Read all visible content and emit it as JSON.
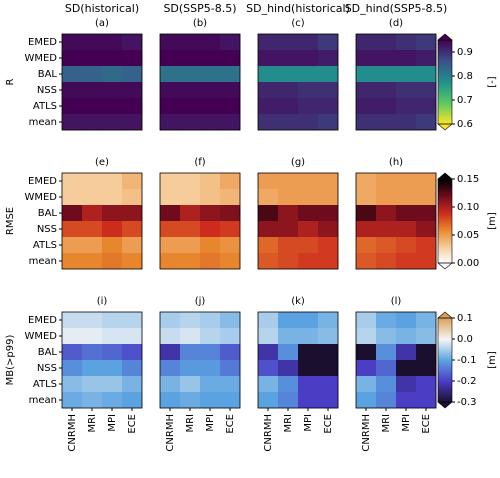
{
  "chart_data": {
    "type": "heatmap",
    "columns": [
      "SD(historical)",
      "SD(SSP5-8.5)",
      "SD_hind(historical)",
      "SD_hind(SSP5-8.5)"
    ],
    "y_categories": [
      "EMED",
      "WMED",
      "BAL",
      "NSS",
      "ATLS",
      "mean"
    ],
    "x_categories": [
      "CNRMH",
      "MRI",
      "MPI",
      "ECE"
    ],
    "rows": [
      {
        "name": "R",
        "colorbar": {
          "label": "[-]",
          "lim": [
            0.6,
            0.95
          ],
          "ticks": [
            0.6,
            0.7,
            0.8,
            0.9
          ],
          "colors": [
            "#fde725",
            "#5ec962",
            "#21918c",
            "#3b528b",
            "#440154"
          ]
        },
        "panels": [
          {
            "label": "(a)",
            "values": [
              [
                0.94,
                0.94,
                0.94,
                0.93
              ],
              [
                0.95,
                0.95,
                0.95,
                0.95
              ],
              [
                0.84,
                0.84,
                0.83,
                0.84
              ],
              [
                0.94,
                0.94,
                0.94,
                0.94
              ],
              [
                0.95,
                0.95,
                0.95,
                0.95
              ],
              [
                0.93,
                0.93,
                0.93,
                0.93
              ]
            ]
          },
          {
            "label": "(b)",
            "values": [
              [
                0.94,
                0.94,
                0.94,
                0.93
              ],
              [
                0.95,
                0.95,
                0.95,
                0.95
              ],
              [
                0.82,
                0.82,
                0.82,
                0.82
              ],
              [
                0.94,
                0.94,
                0.94,
                0.94
              ],
              [
                0.95,
                0.95,
                0.95,
                0.95
              ],
              [
                0.93,
                0.93,
                0.93,
                0.93
              ]
            ]
          },
          {
            "label": "(c)",
            "values": [
              [
                0.91,
                0.91,
                0.91,
                0.89
              ],
              [
                0.93,
                0.93,
                0.93,
                0.92
              ],
              [
                0.78,
                0.78,
                0.78,
                0.78
              ],
              [
                0.91,
                0.91,
                0.9,
                0.9
              ],
              [
                0.92,
                0.92,
                0.91,
                0.91
              ],
              [
                0.9,
                0.9,
                0.9,
                0.89
              ]
            ]
          },
          {
            "label": "(d)",
            "values": [
              [
                0.91,
                0.91,
                0.9,
                0.89
              ],
              [
                0.93,
                0.93,
                0.93,
                0.92
              ],
              [
                0.78,
                0.78,
                0.78,
                0.78
              ],
              [
                0.91,
                0.91,
                0.9,
                0.9
              ],
              [
                0.92,
                0.92,
                0.91,
                0.91
              ],
              [
                0.9,
                0.9,
                0.9,
                0.89
              ]
            ]
          }
        ]
      },
      {
        "name": "RMSE",
        "colorbar": {
          "label": "[m]",
          "lim": [
            0,
            0.15
          ],
          "ticks": [
            {
              "value": 0,
              "label": "0.00"
            },
            0.05,
            {
              "value": 0.1,
              "label": "0.10"
            },
            0.15
          ],
          "colors": [
            "#ffffff",
            "#f5cc9a",
            "#e8862e",
            "#cc2b1e",
            "#6e0c1e",
            "#000000"
          ]
        },
        "panels": [
          {
            "label": "(e)",
            "values": [
              [
                0.03,
                0.03,
                0.03,
                0.04
              ],
              [
                0.03,
                0.03,
                0.03,
                0.035
              ],
              [
                0.12,
                0.1,
                0.11,
                0.11
              ],
              [
                0.08,
                0.08,
                0.09,
                0.08
              ],
              [
                0.05,
                0.05,
                0.06,
                0.05
              ],
              [
                0.06,
                0.06,
                0.065,
                0.06
              ]
            ]
          },
          {
            "label": "(f)",
            "values": [
              [
                0.03,
                0.03,
                0.035,
                0.045
              ],
              [
                0.03,
                0.03,
                0.035,
                0.04
              ],
              [
                0.12,
                0.1,
                0.11,
                0.115
              ],
              [
                0.08,
                0.08,
                0.09,
                0.085
              ],
              [
                0.05,
                0.05,
                0.06,
                0.055
              ],
              [
                0.06,
                0.06,
                0.065,
                0.06
              ]
            ]
          },
          {
            "label": "(g)",
            "values": [
              [
                0.05,
                0.05,
                0.05,
                0.05
              ],
              [
                0.045,
                0.05,
                0.05,
                0.05
              ],
              [
                0.13,
                0.11,
                0.12,
                0.12
              ],
              [
                0.11,
                0.11,
                0.1,
                0.11
              ],
              [
                0.07,
                0.08,
                0.08,
                0.085
              ],
              [
                0.075,
                0.08,
                0.085,
                0.085
              ]
            ]
          },
          {
            "label": "(h)",
            "values": [
              [
                0.045,
                0.05,
                0.05,
                0.05
              ],
              [
                0.045,
                0.05,
                0.05,
                0.05
              ],
              [
                0.13,
                0.11,
                0.12,
                0.12
              ],
              [
                0.1,
                0.1,
                0.1,
                0.11
              ],
              [
                0.07,
                0.075,
                0.08,
                0.085
              ],
              [
                0.075,
                0.08,
                0.085,
                0.085
              ]
            ]
          }
        ]
      },
      {
        "name": "MB(>p99)",
        "colorbar": {
          "label": "[m]",
          "lim": [
            -0.3,
            0.1
          ],
          "ticks": [
            -0.3,
            -0.2,
            -0.1,
            {
              "value": 0,
              "label": "0.0"
            },
            0.1
          ],
          "colors": [
            "#1a0f2e",
            "#4b3dc4",
            "#5aa3e0",
            "#f5f5f5",
            "#d9a25c"
          ]
        },
        "panels": [
          {
            "label": "(i)",
            "values": [
              [
                -0.03,
                -0.03,
                -0.04,
                -0.04
              ],
              [
                -0.01,
                -0.01,
                -0.02,
                -0.02
              ],
              [
                -0.17,
                -0.15,
                -0.16,
                -0.18
              ],
              [
                -0.12,
                -0.1,
                -0.1,
                -0.13
              ],
              [
                -0.07,
                -0.06,
                -0.06,
                -0.08
              ],
              [
                -0.09,
                -0.08,
                -0.09,
                -0.1
              ]
            ]
          },
          {
            "label": "(j)",
            "values": [
              [
                -0.05,
                -0.04,
                -0.05,
                -0.07
              ],
              [
                -0.03,
                -0.02,
                -0.04,
                -0.05
              ],
              [
                -0.22,
                -0.13,
                -0.13,
                -0.17
              ],
              [
                -0.13,
                -0.11,
                -0.11,
                -0.14
              ],
              [
                -0.08,
                -0.06,
                -0.09,
                -0.09
              ],
              [
                -0.1,
                -0.09,
                -0.1,
                -0.1
              ]
            ]
          },
          {
            "label": "(k)",
            "values": [
              [
                -0.05,
                -0.1,
                -0.1,
                -0.08
              ],
              [
                -0.04,
                -0.08,
                -0.08,
                -0.07
              ],
              [
                -0.22,
                -0.12,
                -0.3,
                -0.3
              ],
              [
                -0.18,
                -0.22,
                -0.3,
                -0.3
              ],
              [
                -0.08,
                -0.12,
                -0.2,
                -0.2
              ],
              [
                -0.1,
                -0.13,
                -0.2,
                -0.2
              ]
            ]
          },
          {
            "label": "(l)",
            "values": [
              [
                -0.05,
                -0.09,
                -0.1,
                -0.08
              ],
              [
                -0.04,
                -0.07,
                -0.08,
                -0.07
              ],
              [
                -0.3,
                -0.12,
                -0.22,
                -0.3
              ],
              [
                -0.2,
                -0.16,
                -0.3,
                -0.3
              ],
              [
                -0.08,
                -0.12,
                -0.22,
                -0.2
              ],
              [
                -0.1,
                -0.13,
                -0.2,
                -0.2
              ]
            ]
          }
        ]
      }
    ]
  }
}
